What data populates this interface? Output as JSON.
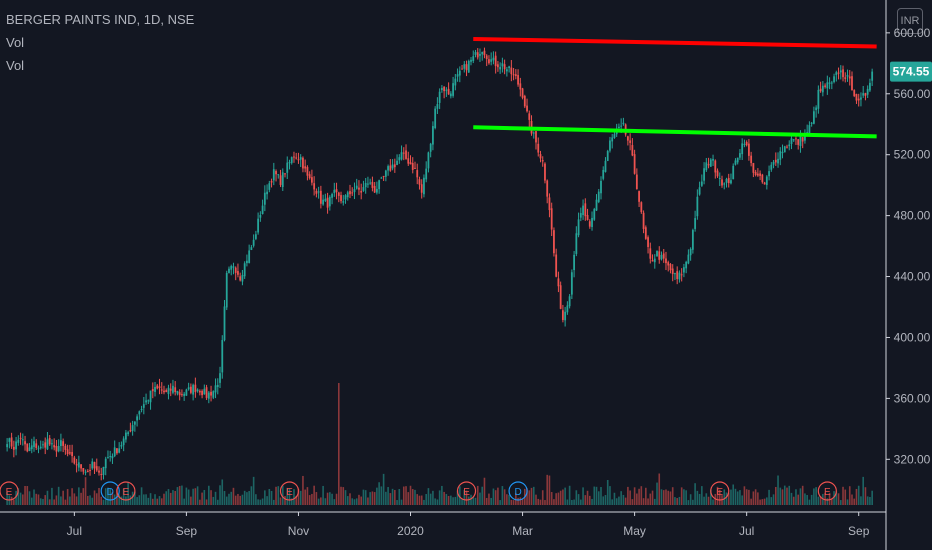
{
  "header": {
    "symbol": "BERGER PAINTS IND, 1D, NSE",
    "indicators": [
      "Vol",
      "Vol"
    ]
  },
  "currency": "INR",
  "last_price_label": "574.55",
  "colors": {
    "background": "#131722",
    "up": "#26a69a",
    "down": "#ef5350",
    "resistance": "#ff0000",
    "support": "#00ff00",
    "last_price_bg": "#26a69a",
    "event_earnings": "#ef5350",
    "event_dividend": "#2196f3"
  },
  "chart_data": {
    "type": "candlestick",
    "price_axis": {
      "ylim": [
        290,
        615
      ],
      "ticks": [
        "600.00",
        "560.00",
        "520.00",
        "480.00",
        "440.00",
        "400.00",
        "360.00",
        "320.00"
      ],
      "tick_values": [
        600,
        560,
        520,
        480,
        440,
        400,
        360,
        320
      ]
    },
    "time_axis": {
      "ticks": [
        "Jul",
        "Sep",
        "Nov",
        "2020",
        "Mar",
        "May",
        "Jul",
        "Sep"
      ],
      "tick_index": [
        30,
        80,
        130,
        180,
        230,
        280,
        330,
        380
      ]
    },
    "anchors": [
      [
        0,
        333
      ],
      [
        3,
        328
      ],
      [
        6,
        335
      ],
      [
        9,
        325
      ],
      [
        12,
        330
      ],
      [
        15,
        327
      ],
      [
        18,
        332
      ],
      [
        21,
        326
      ],
      [
        24,
        330
      ],
      [
        27,
        323
      ],
      [
        30,
        318
      ],
      [
        33,
        315
      ],
      [
        36,
        312
      ],
      [
        38,
        316
      ],
      [
        41,
        309
      ],
      [
        44,
        320
      ],
      [
        47,
        324
      ],
      [
        50,
        328
      ],
      [
        53,
        335
      ],
      [
        56,
        343
      ],
      [
        59,
        352
      ],
      [
        62,
        358
      ],
      [
        65,
        365
      ],
      [
        68,
        366
      ],
      [
        71,
        363
      ],
      [
        74,
        367
      ],
      [
        77,
        363
      ],
      [
        80,
        364
      ],
      [
        83,
        367
      ],
      [
        86,
        366
      ],
      [
        89,
        362
      ],
      [
        92,
        365
      ],
      [
        95,
        374
      ],
      [
        98,
        440
      ],
      [
        101,
        448
      ],
      [
        104,
        440
      ],
      [
        107,
        452
      ],
      [
        110,
        463
      ],
      [
        113,
        482
      ],
      [
        116,
        498
      ],
      [
        119,
        508
      ],
      [
        122,
        503
      ],
      [
        125,
        512
      ],
      [
        128,
        520
      ],
      [
        131,
        518
      ],
      [
        134,
        505
      ],
      [
        137,
        500
      ],
      [
        140,
        490
      ],
      [
        143,
        488
      ],
      [
        146,
        494
      ],
      [
        149,
        490
      ],
      [
        152,
        493
      ],
      [
        155,
        498
      ],
      [
        158,
        496
      ],
      [
        161,
        502
      ],
      [
        164,
        497
      ],
      [
        167,
        502
      ],
      [
        170,
        510
      ],
      [
        173,
        514
      ],
      [
        176,
        520
      ],
      [
        179,
        516
      ],
      [
        182,
        510
      ],
      [
        185,
        495
      ],
      [
        188,
        520
      ],
      [
        191,
        550
      ],
      [
        194,
        565
      ],
      [
        197,
        560
      ],
      [
        200,
        568
      ],
      [
        203,
        575
      ],
      [
        206,
        580
      ],
      [
        209,
        585
      ],
      [
        212,
        590
      ],
      [
        215,
        583
      ],
      [
        218,
        580
      ],
      [
        221,
        579
      ],
      [
        224,
        575
      ],
      [
        227,
        570
      ],
      [
        230,
        560
      ],
      [
        233,
        540
      ],
      [
        236,
        528
      ],
      [
        239,
        515
      ],
      [
        242,
        485
      ],
      [
        245,
        440
      ],
      [
        248,
        412
      ],
      [
        251,
        430
      ],
      [
        254,
        470
      ],
      [
        257,
        485
      ],
      [
        260,
        470
      ],
      [
        263,
        490
      ],
      [
        266,
        510
      ],
      [
        269,
        528
      ],
      [
        272,
        535
      ],
      [
        275,
        538
      ],
      [
        278,
        525
      ],
      [
        281,
        500
      ],
      [
        284,
        470
      ],
      [
        287,
        450
      ],
      [
        290,
        455
      ],
      [
        293,
        450
      ],
      [
        296,
        444
      ],
      [
        299,
        438
      ],
      [
        302,
        445
      ],
      [
        305,
        460
      ],
      [
        308,
        490
      ],
      [
        311,
        510
      ],
      [
        314,
        518
      ],
      [
        317,
        508
      ],
      [
        320,
        500
      ],
      [
        323,
        505
      ],
      [
        326,
        520
      ],
      [
        329,
        530
      ],
      [
        332,
        513
      ],
      [
        335,
        505
      ],
      [
        338,
        500
      ],
      [
        341,
        512
      ],
      [
        344,
        520
      ],
      [
        347,
        525
      ],
      [
        350,
        530
      ],
      [
        353,
        528
      ],
      [
        356,
        533
      ],
      [
        359,
        540
      ],
      [
        362,
        560
      ],
      [
        365,
        565
      ],
      [
        368,
        566
      ],
      [
        371,
        575
      ],
      [
        374,
        572
      ],
      [
        377,
        565
      ],
      [
        380,
        553
      ],
      [
        383,
        560
      ],
      [
        386,
        575
      ]
    ],
    "volume_spike": {
      "index": 148,
      "value": 100
    },
    "trendlines": [
      {
        "name": "resistance",
        "start": [
          208,
          596
        ],
        "end": [
          388,
          591
        ]
      },
      {
        "name": "support",
        "start": [
          208,
          538
        ],
        "end": [
          388,
          532
        ]
      }
    ],
    "events": [
      {
        "type": "E",
        "index": 0
      },
      {
        "type": "D",
        "index": 46
      },
      {
        "type": "E",
        "index": 53
      },
      {
        "type": "E",
        "index": 126
      },
      {
        "type": "E",
        "index": 205
      },
      {
        "type": "D",
        "index": 228
      },
      {
        "type": "E",
        "index": 318
      },
      {
        "type": "E",
        "index": 366
      }
    ],
    "last_price": 574.55
  }
}
